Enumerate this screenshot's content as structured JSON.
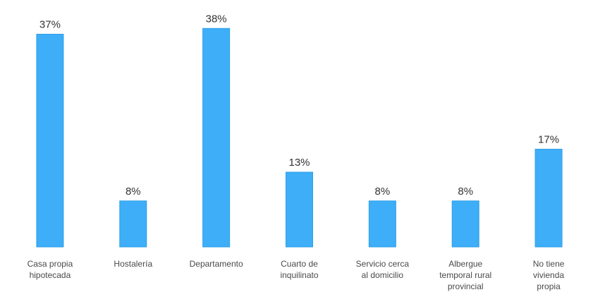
{
  "chart_data": {
    "type": "bar",
    "title": "",
    "xlabel": "",
    "ylabel": "",
    "ylim": [
      0,
      40
    ],
    "grid": false,
    "legend": "none",
    "colors": {
      "bar": "#3daef7",
      "bar_edge": "#2f9fe8",
      "text": "#333333",
      "axis_text": "#4a4a4a"
    },
    "categories": [
      [
        "Casa propia",
        "hipotecada"
      ],
      [
        "Hostalería"
      ],
      [
        "Departamento"
      ],
      [
        "Cuarto de",
        "inquilinato"
      ],
      [
        "Servicio cerca",
        "al domicilio"
      ],
      [
        "Albergue",
        "temporal rural",
        "provincial"
      ],
      [
        "No tiene",
        "vivienda",
        "propia"
      ]
    ],
    "values": [
      37,
      8,
      38,
      13,
      8,
      8,
      17
    ],
    "value_labels": [
      "37%",
      "8%",
      "38%",
      "13%",
      "8%",
      "8%",
      "17%"
    ]
  }
}
